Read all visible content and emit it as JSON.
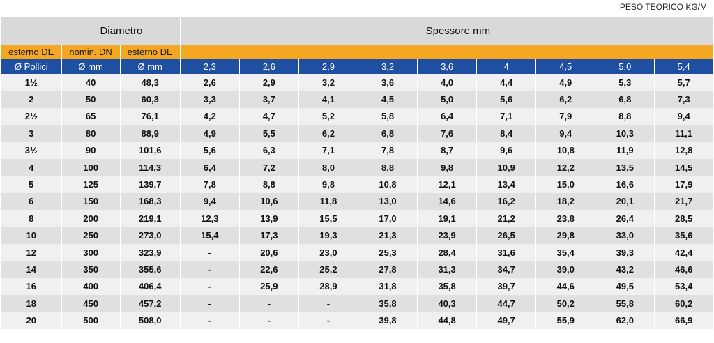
{
  "caption": "PESO TEORICO KG/M",
  "header": {
    "diameter_title": "Diametro",
    "thickness_title": "Spessore mm",
    "sub_labels": [
      "esterno DE",
      "nomin. DN",
      "esterno DE"
    ],
    "unit_labels": [
      "Ø Pollici",
      "Ø mm",
      "Ø mm"
    ],
    "thicknesses": [
      "2,3",
      "2,6",
      "2,9",
      "3,2",
      "3,6",
      "4",
      "4,5",
      "5,0",
      "5,4"
    ]
  },
  "rows": [
    {
      "inch": "1½",
      "dn": "40",
      "de": "48,3",
      "w": [
        "2,6",
        "2,9",
        "3,2",
        "3,6",
        "4,0",
        "4,4",
        "4,9",
        "5,3",
        "5,7"
      ]
    },
    {
      "inch": "2",
      "dn": "50",
      "de": "60,3",
      "w": [
        "3,3",
        "3,7",
        "4,1",
        "4,5",
        "5,0",
        "5,6",
        "6,2",
        "6,8",
        "7,3"
      ]
    },
    {
      "inch": "2½",
      "dn": "65",
      "de": "76,1",
      "w": [
        "4,2",
        "4,7",
        "5,2",
        "5,8",
        "6,4",
        "7,1",
        "7,9",
        "8,8",
        "9,4"
      ]
    },
    {
      "inch": "3",
      "dn": "80",
      "de": "88,9",
      "w": [
        "4,9",
        "5,5",
        "6,2",
        "6,8",
        "7,6",
        "8,4",
        "9,4",
        "10,3",
        "11,1"
      ]
    },
    {
      "inch": "3½",
      "dn": "90",
      "de": "101,6",
      "w": [
        "5,6",
        "6,3",
        "7,1",
        "7,8",
        "8,7",
        "9,6",
        "10,8",
        "11,9",
        "12,8"
      ]
    },
    {
      "inch": "4",
      "dn": "100",
      "de": "114,3",
      "w": [
        "6,4",
        "7,2",
        "8,0",
        "8,8",
        "9,8",
        "10,9",
        "12,2",
        "13,5",
        "14,5"
      ]
    },
    {
      "inch": "5",
      "dn": "125",
      "de": "139,7",
      "w": [
        "7,8",
        "8,8",
        "9,8",
        "10,8",
        "12,1",
        "13,4",
        "15,0",
        "16,6",
        "17,9"
      ]
    },
    {
      "inch": "6",
      "dn": "150",
      "de": "168,3",
      "w": [
        "9,4",
        "10,6",
        "11,8",
        "13,0",
        "14,6",
        "16,2",
        "18,2",
        "20,1",
        "21,7"
      ]
    },
    {
      "inch": "8",
      "dn": "200",
      "de": "219,1",
      "w": [
        "12,3",
        "13,9",
        "15,5",
        "17,0",
        "19,1",
        "21,2",
        "23,8",
        "26,4",
        "28,5"
      ]
    },
    {
      "inch": "10",
      "dn": "250",
      "de": "273,0",
      "w": [
        "15,4",
        "17,3",
        "19,3",
        "21,3",
        "23,9",
        "26,5",
        "29,8",
        "33,0",
        "35,6"
      ]
    },
    {
      "inch": "12",
      "dn": "300",
      "de": "323,9",
      "w": [
        "-",
        "20,6",
        "23,0",
        "25,3",
        "28,4",
        "31,6",
        "35,4",
        "39,3",
        "42,4"
      ]
    },
    {
      "inch": "14",
      "dn": "350",
      "de": "355,6",
      "w": [
        "-",
        "22,6",
        "25,2",
        "27,8",
        "31,3",
        "34,7",
        "39,0",
        "43,2",
        "46,6"
      ]
    },
    {
      "inch": "16",
      "dn": "400",
      "de": "406,4",
      "w": [
        "-",
        "25,9",
        "28,9",
        "31,8",
        "35,8",
        "39,7",
        "44,6",
        "49,5",
        "53,4"
      ]
    },
    {
      "inch": "18",
      "dn": "450",
      "de": "457,2",
      "w": [
        "-",
        "-",
        "-",
        "35,8",
        "40,3",
        "44,7",
        "50,2",
        "55,8",
        "60,2"
      ]
    },
    {
      "inch": "20",
      "dn": "500",
      "de": "508,0",
      "w": [
        "-",
        "-",
        "-",
        "39,8",
        "44,8",
        "49,7",
        "55,9",
        "62,0",
        "66,9"
      ]
    }
  ],
  "colors": {
    "header_grey": "#d9d9d9",
    "subheader_orange": "#f5a623",
    "unit_row_blue": "#1f4fa0",
    "row_light": "#f0f0f0",
    "row_dark": "#e0e0e0"
  }
}
